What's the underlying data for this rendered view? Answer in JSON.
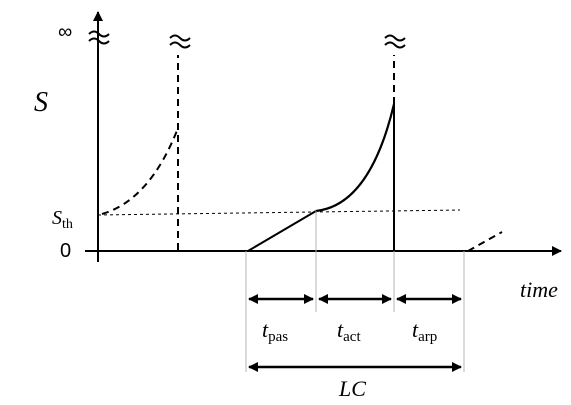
{
  "labels": {
    "y_axis": "S",
    "x_axis": "time",
    "infinity": "∞",
    "threshold_main": "S",
    "threshold_sub": "th",
    "zero": "0",
    "t_pas_main": "t",
    "t_pas_sub": "pas",
    "t_act_main": "t",
    "t_act_sub": "act",
    "t_arp_main": "t",
    "t_arp_sub": "arp",
    "lc": "LC"
  }
}
